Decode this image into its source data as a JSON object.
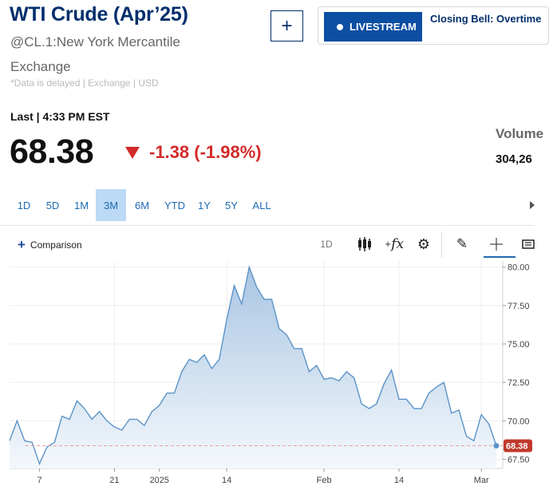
{
  "header": {
    "title": "WTI Crude (Apr’25)",
    "subtitle": "@CL.1:New York Mercantile Exchange",
    "disclaimer": "*Data is delayed | Exchange | USD",
    "add_label": "+"
  },
  "livestream": {
    "button_label": "LIVESTREAM",
    "show_title": "Closing Bell: Overtime"
  },
  "quote": {
    "last_label": "Last | 4:33 PM EST",
    "price": "68.38",
    "change": "-1.38 (-1.98%)",
    "volume_label": "Volume",
    "volume_value": "304,26"
  },
  "ranges": [
    {
      "label": "1D",
      "active": false
    },
    {
      "label": "5D",
      "active": false
    },
    {
      "label": "1M",
      "active": false
    },
    {
      "label": "3M",
      "active": true
    },
    {
      "label": "6M",
      "active": false
    },
    {
      "label": "YTD",
      "active": false
    },
    {
      "label": "1Y",
      "active": false
    },
    {
      "label": "5Y",
      "active": false
    },
    {
      "label": "ALL",
      "active": false
    }
  ],
  "toolbar": {
    "comparison_label": "Comparison",
    "interval_label": "1D",
    "fx_label": "fx"
  },
  "colors": {
    "line": "#5b93c7",
    "fill_top": "#a9c6e3",
    "fill_bottom": "#f4f8fc",
    "price_tag": "#c0392b",
    "down": "#d32a2a",
    "brand": "#002F6C"
  },
  "chart_data": {
    "type": "area",
    "y_ticks": [
      "80.00",
      "77.50",
      "75.00",
      "72.50",
      "70.00",
      "67.50"
    ],
    "ylim": [
      66.9,
      80.4
    ],
    "x_ticks": [
      {
        "label": "7",
        "index": 4
      },
      {
        "label": "21",
        "index": 14
      },
      {
        "label": "2025",
        "index": 20
      },
      {
        "label": "14",
        "index": 29
      },
      {
        "label": "Feb",
        "index": 42
      },
      {
        "label": "14",
        "index": 52
      },
      {
        "label": "Mar",
        "index": 63
      }
    ],
    "vgrid_indices": [
      14,
      29,
      42,
      52,
      63
    ],
    "last_value": 68.38,
    "last_value_label": "68.38",
    "values": [
      68.7,
      70.0,
      68.7,
      68.6,
      67.2,
      68.3,
      68.6,
      70.3,
      70.1,
      71.3,
      70.8,
      70.1,
      70.6,
      70.0,
      69.6,
      69.4,
      70.1,
      70.1,
      69.7,
      70.6,
      71.0,
      71.8,
      71.8,
      73.2,
      74.0,
      73.8,
      74.3,
      73.4,
      74.0,
      76.6,
      78.8,
      77.6,
      80.0,
      78.7,
      77.9,
      77.9,
      76.0,
      75.6,
      74.7,
      74.7,
      73.2,
      73.6,
      72.7,
      72.8,
      72.6,
      73.2,
      72.8,
      71.1,
      70.8,
      71.1,
      72.4,
      73.3,
      71.4,
      71.4,
      70.8,
      70.8,
      71.8,
      72.2,
      72.5,
      70.5,
      70.7,
      69.0,
      68.7,
      70.4,
      69.8,
      68.38
    ]
  }
}
